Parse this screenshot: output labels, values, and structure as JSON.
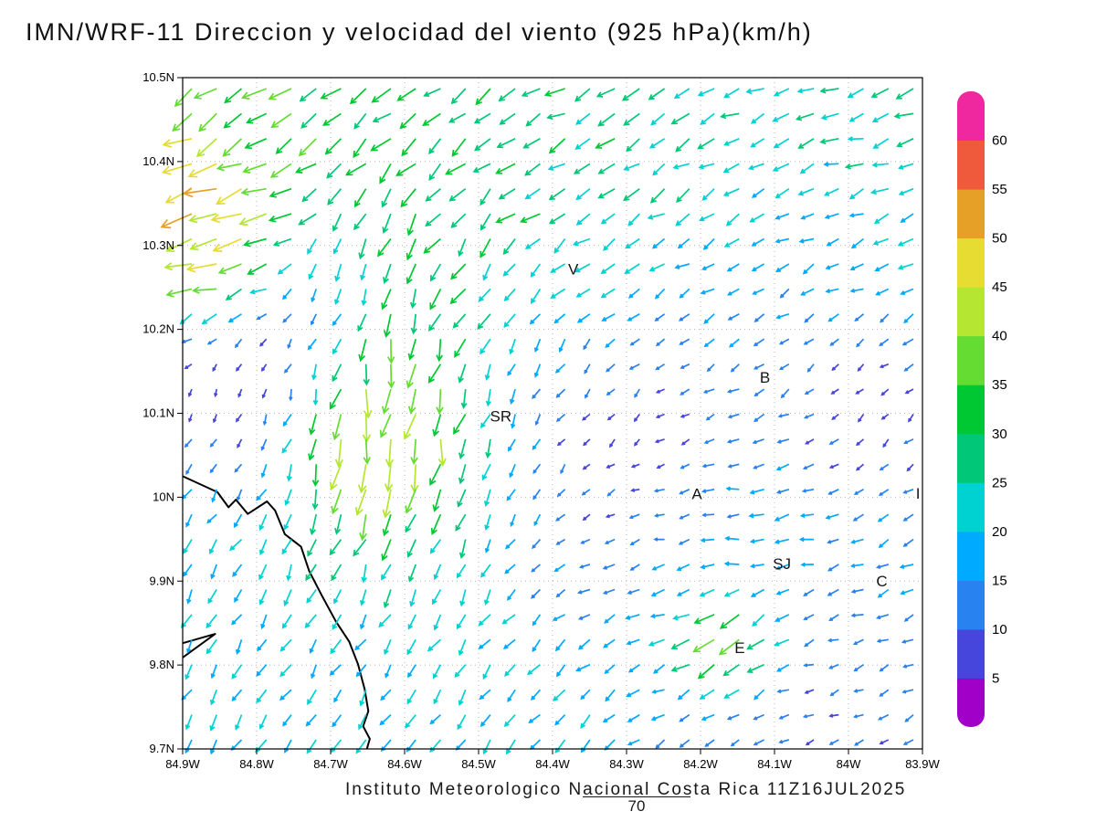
{
  "page": {
    "title": "IMN/WRF-11 Direccion y velocidad del viento (925 hPa)(km/h)",
    "footer_credit": "Instituto Meteorologico Nacional Costa Rica 11Z16JUL2025",
    "footer_page_number": "70"
  },
  "chart_data": {
    "type": "vector_field",
    "title": "IMN/WRF-11 Direccion y velocidad del viento (925 hPa)(km/h)",
    "model": "IMN/WRF-11",
    "variable": "Direccion y velocidad del viento",
    "level": "925 hPa",
    "units": "km/h",
    "valid_time": "11Z16JUL2025",
    "grid_dotted": true,
    "x_axis": {
      "tick_labels": [
        "84.9W",
        "84.8W",
        "84.7W",
        "84.6W",
        "84.5W",
        "84.4W",
        "84.3W",
        "84.2W",
        "84.1W",
        "84W",
        "83.9W"
      ],
      "start_deg_w": 84.9,
      "end_deg_w": 83.9,
      "step_deg": 0.1
    },
    "y_axis": {
      "tick_labels": [
        "9.7N",
        "9.8N",
        "9.9N",
        "10N",
        "10.1N",
        "10.2N",
        "10.3N",
        "10.4N",
        "10.5N"
      ],
      "start_deg_n": 9.7,
      "end_deg_n": 10.5,
      "step_deg": 0.1
    },
    "colorbar": {
      "units": "km/h",
      "levels": [
        5,
        10,
        15,
        20,
        25,
        30,
        35,
        40,
        45,
        50,
        55,
        60
      ],
      "colors": [
        "#a000c8",
        "#4646dc",
        "#2882f0",
        "#00aaff",
        "#00d2d2",
        "#00c878",
        "#00c832",
        "#64dc32",
        "#b4e632",
        "#e6dc32",
        "#e6a028",
        "#f05a3c",
        "#f028a0"
      ]
    },
    "stations": [
      {
        "label": "V",
        "lat": 10.272,
        "lon_w": 84.372
      },
      {
        "label": "SR",
        "lat": 10.097,
        "lon_w": 84.47
      },
      {
        "label": "B",
        "lat": 10.143,
        "lon_w": 84.113
      },
      {
        "label": "A",
        "lat": 10.004,
        "lon_w": 84.205
      },
      {
        "label": "SJ",
        "lat": 9.921,
        "lon_w": 84.09
      },
      {
        "label": "C",
        "lat": 9.9,
        "lon_w": 83.955
      },
      {
        "label": "E",
        "lat": 9.821,
        "lon_w": 84.147
      },
      {
        "label": "I",
        "lat": 10.005,
        "lon_w": 83.906
      }
    ],
    "coastline": [
      [
        [
          84.9,
          10.025
        ],
        [
          84.853,
          10.006
        ],
        [
          84.838,
          9.988
        ],
        [
          84.828,
          9.997
        ],
        [
          84.812,
          9.98
        ],
        [
          84.786,
          9.995
        ],
        [
          84.775,
          9.984
        ],
        [
          84.762,
          9.956
        ],
        [
          84.74,
          9.941
        ],
        [
          84.729,
          9.912
        ],
        [
          84.712,
          9.883
        ],
        [
          84.693,
          9.852
        ],
        [
          84.675,
          9.828
        ],
        [
          84.663,
          9.801
        ],
        [
          84.654,
          9.771
        ],
        [
          84.649,
          9.745
        ],
        [
          84.656,
          9.727
        ],
        [
          84.647,
          9.712
        ],
        [
          84.651,
          9.7
        ]
      ],
      [
        [
          84.9,
          9.826
        ],
        [
          84.856,
          9.837
        ],
        [
          84.9,
          9.809
        ]
      ]
    ],
    "arrow_grid": {
      "cols": 30,
      "rows": 27
    },
    "wind_zones": [
      {
        "name": "background-trade-flow",
        "lat": 10.1,
        "lon_w": 84.4,
        "dir": 215,
        "speed": 17,
        "r": 0.65,
        "wgt": 0.3
      },
      {
        "name": "north-band",
        "lat": 10.52,
        "lon_w": 84.5,
        "dir": 207,
        "speed": 33,
        "r": 0.22,
        "wgt": 1
      },
      {
        "name": "northeast-corner",
        "lat": 10.45,
        "lon_w": 84.0,
        "dir": 192,
        "speed": 27,
        "r": 0.18,
        "wgt": 1
      },
      {
        "name": "northwest-yellow",
        "lat": 10.43,
        "lon_w": 84.82,
        "dir": 217,
        "speed": 43,
        "r": 0.1,
        "wgt": 1
      },
      {
        "name": "northwest-red-jet",
        "lat": 10.31,
        "lon_w": 84.86,
        "dir": 196,
        "speed": 57,
        "r": 0.055,
        "wgt": 5
      },
      {
        "name": "west-calm-purple",
        "lat": 10.18,
        "lon_w": 84.8,
        "dir": 265,
        "speed": 4,
        "r": 0.09,
        "wgt": 3
      },
      {
        "name": "central-column-upper",
        "lat": 10.28,
        "lon_w": 84.6,
        "dir": 258,
        "speed": 40,
        "r": 0.1,
        "wgt": 1
      },
      {
        "name": "central-column-orange",
        "lat": 10.09,
        "lon_w": 84.62,
        "dir": 262,
        "speed": 52,
        "r": 0.065,
        "wgt": 4
      },
      {
        "name": "central-column-lower",
        "lat": 10.0,
        "lon_w": 84.68,
        "dir": 250,
        "speed": 40,
        "r": 0.06,
        "wgt": 1
      },
      {
        "name": "mid-green-south",
        "lat": 10.02,
        "lon_w": 84.52,
        "dir": 260,
        "speed": 30,
        "r": 0.09,
        "wgt": 1
      },
      {
        "name": "mid-cyan",
        "lat": 10.15,
        "lon_w": 84.45,
        "dir": 250,
        "speed": 20,
        "r": 0.09,
        "wgt": 1
      },
      {
        "name": "central-calm-purple",
        "lat": 10.05,
        "lon_w": 84.3,
        "dir": 245,
        "speed": 4,
        "r": 0.1,
        "wgt": 3
      },
      {
        "name": "upper-mid-green",
        "lat": 10.36,
        "lon_w": 84.3,
        "dir": 215,
        "speed": 28,
        "r": 0.12,
        "wgt": 1
      },
      {
        "name": "east-mid-blue",
        "lat": 10.2,
        "lon_w": 84.12,
        "dir": 230,
        "speed": 11,
        "r": 0.13,
        "wgt": 1
      },
      {
        "name": "east-cyan",
        "lat": 10.23,
        "lon_w": 83.95,
        "dir": 205,
        "speed": 17,
        "r": 0.1,
        "wgt": 1
      },
      {
        "name": "east-calm",
        "lat": 10.12,
        "lon_w": 83.98,
        "dir": 260,
        "speed": 5,
        "r": 0.07,
        "wgt": 2
      },
      {
        "name": "alajuela-westerly",
        "lat": 10.0,
        "lon_w": 84.12,
        "dir": 178,
        "speed": 26,
        "r": 0.08,
        "wgt": 1
      },
      {
        "name": "valley-westerly",
        "lat": 9.93,
        "lon_w": 84.25,
        "dir": 178,
        "speed": 28,
        "r": 0.1,
        "wgt": 1
      },
      {
        "name": "cartago-cyan",
        "lat": 9.9,
        "lon_w": 83.93,
        "dir": 205,
        "speed": 16,
        "r": 0.07,
        "wgt": 1
      },
      {
        "name": "gulf-cyan",
        "lat": 9.85,
        "lon_w": 84.78,
        "dir": 243,
        "speed": 22,
        "r": 0.16,
        "wgt": 1
      },
      {
        "name": "south-cyan",
        "lat": 9.73,
        "lon_w": 84.45,
        "dir": 235,
        "speed": 21,
        "r": 0.14,
        "wgt": 1
      },
      {
        "name": "southeast-calm",
        "lat": 9.76,
        "lon_w": 84.05,
        "dir": 195,
        "speed": 9,
        "r": 0.12,
        "wgt": 1
      },
      {
        "name": "escazu-yellow",
        "lat": 9.83,
        "lon_w": 84.16,
        "dir": 225,
        "speed": 41,
        "r": 0.035,
        "wgt": 4
      }
    ]
  }
}
